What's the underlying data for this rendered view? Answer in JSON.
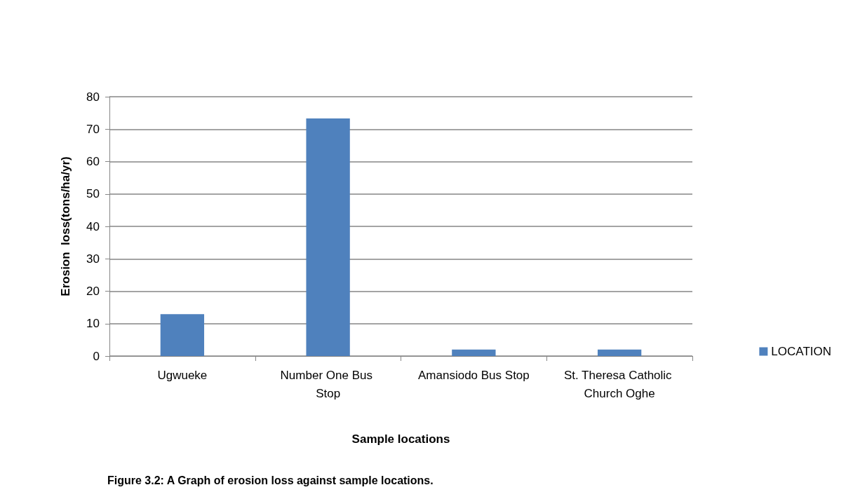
{
  "chart_data": {
    "type": "bar",
    "title": "Figure 3.2: A Graph of erosion loss against sample locations.",
    "xlabel": "Sample locations",
    "ylabel": "Erosion  loss(tons/ha/yr)",
    "categories": [
      "Ugwueke",
      "Number One Bus Stop",
      "Amansiodo Bus Stop",
      "St. Theresa Catholic Church Oghe"
    ],
    "series": [
      {
        "name": "LOCATION",
        "color": "#4f81bd",
        "values": [
          12.9,
          73.3,
          2.0,
          2.0
        ]
      }
    ],
    "ylim": [
      0,
      80
    ],
    "yticks": [
      0,
      10,
      20,
      30,
      40,
      50,
      60,
      70,
      80
    ],
    "grid": "y",
    "legend": "right"
  }
}
